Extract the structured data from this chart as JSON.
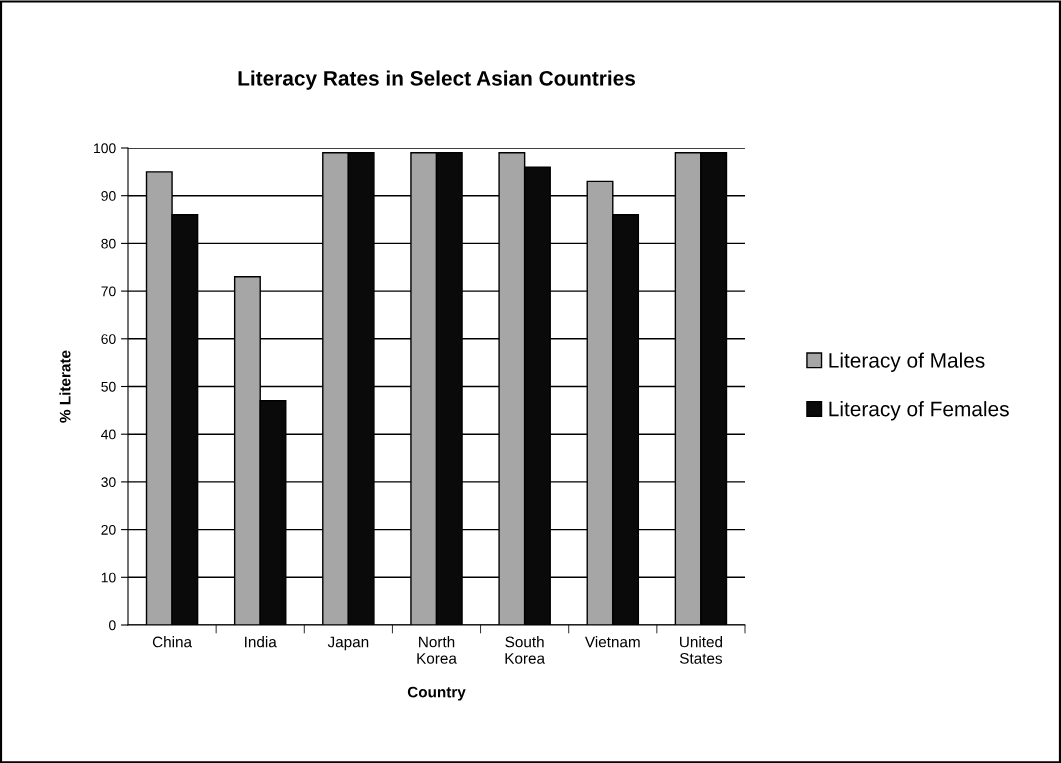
{
  "chart_data": {
    "type": "bar",
    "title": "Literacy Rates in Select Asian Countries",
    "xlabel": "Country",
    "ylabel": "% Literate",
    "categories": [
      "China",
      "India",
      "Japan",
      "North Korea",
      "South Korea",
      "Vietnam",
      "United States"
    ],
    "series": [
      {
        "name": "Literacy of Males",
        "color": "#a6a6a6",
        "values": [
          95,
          73,
          99,
          99,
          99,
          93,
          99
        ]
      },
      {
        "name": "Literacy of Females",
        "color": "#0a0a0a",
        "values": [
          86,
          47,
          99,
          99,
          96,
          86,
          99
        ]
      }
    ],
    "ylim": [
      0,
      100
    ],
    "yticks": [
      0,
      10,
      20,
      30,
      40,
      50,
      60,
      70,
      80,
      90,
      100
    ],
    "grid": "y",
    "legend": "right"
  }
}
